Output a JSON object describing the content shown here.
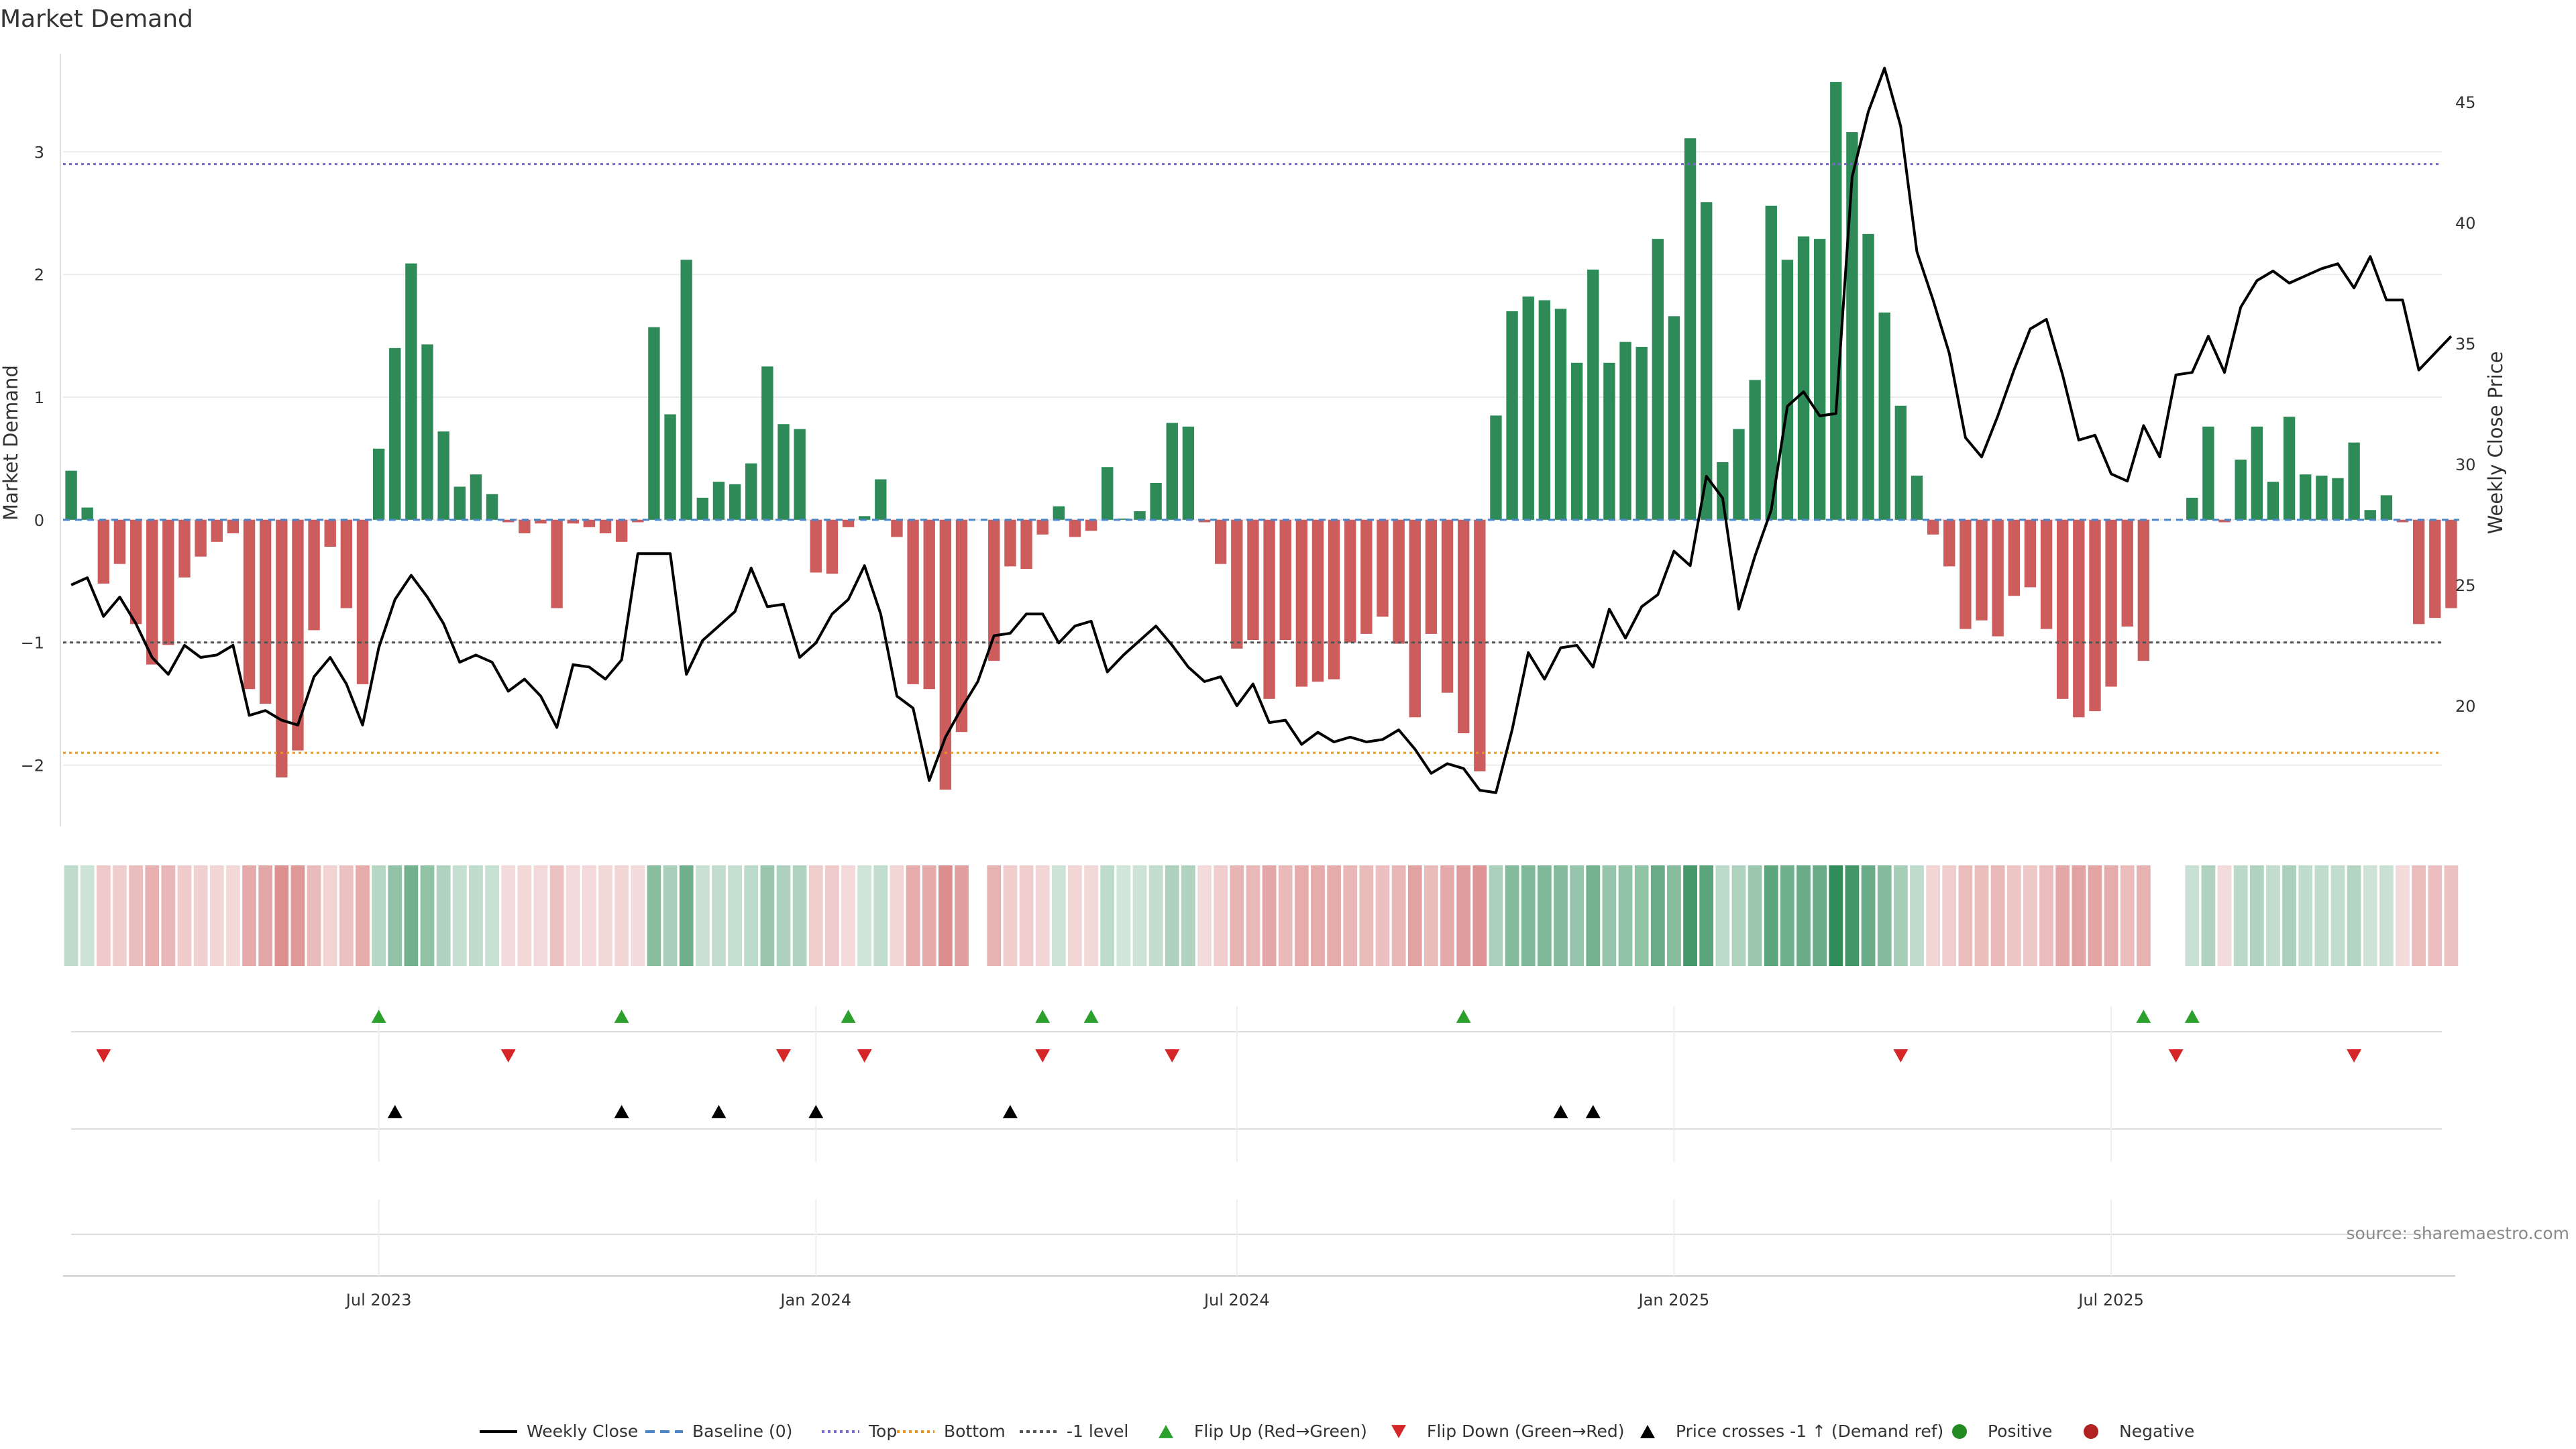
{
  "chart_data": {
    "type": "bar",
    "title": "Market Demand",
    "ylabel": "Market Demand",
    "y2label": "Weekly Close Price",
    "ylim": [
      -2.5,
      3.8
    ],
    "y2lim": [
      15,
      47
    ],
    "yticks": [
      "−2",
      "−1",
      "0",
      "1",
      "2",
      "3"
    ],
    "y2ticks": [
      "20",
      "25",
      "30",
      "35",
      "40",
      "45"
    ],
    "xticks": [
      "Jul 2023",
      "Jan 2024",
      "Jul 2024",
      "Jan 2025",
      "Jul 2025"
    ],
    "source": "source: sharemaestro.com",
    "reference_lines": {
      "baseline": 0,
      "top": 2.9,
      "bottom": -1.9,
      "minus_one": -1
    },
    "colors": {
      "positive": "#2e8b57",
      "negative": "#cd5c5c",
      "close": "#000000",
      "top": "#7b68c8",
      "bottom": "#e69520",
      "minus_one": "#555555",
      "baseline": "#4a86c8",
      "flip_up": "#2ca02c",
      "flip_down": "#d62728"
    },
    "demand": [
      0.4,
      0.1,
      -0.52,
      -0.36,
      -0.85,
      -1.18,
      -1.02,
      -0.47,
      -0.3,
      -0.18,
      -0.11,
      -1.38,
      -1.5,
      -2.1,
      -1.88,
      -0.9,
      -0.22,
      -0.72,
      -1.34,
      0.58,
      1.4,
      2.09,
      1.43,
      0.72,
      0.27,
      0.37,
      0.21,
      -0.02,
      -0.11,
      -0.03,
      -0.72,
      -0.03,
      -0.06,
      -0.11,
      -0.18,
      -0.02,
      1.57,
      0.86,
      2.12,
      0.18,
      0.31,
      0.29,
      0.46,
      1.25,
      0.78,
      0.74,
      -0.43,
      -0.44,
      -0.06,
      0.03,
      0.33,
      -0.14,
      -1.34,
      -1.38,
      -2.2,
      -1.73,
      0,
      -1.15,
      -0.38,
      -0.4,
      -0.12,
      0.11,
      -0.14,
      -0.09,
      0.43,
      0.01,
      0.07,
      0.3,
      0.79,
      0.76,
      -0.02,
      -0.36,
      -1.05,
      -0.98,
      -1.46,
      -0.98,
      -1.36,
      -1.32,
      -1.3,
      -1.0,
      -0.93,
      -0.79,
      -1.01,
      -1.61,
      -0.93,
      -1.41,
      -1.74,
      -2.05,
      0.85,
      1.7,
      1.82,
      1.79,
      1.72,
      1.28,
      2.04,
      1.28,
      1.45,
      1.41,
      2.29,
      1.66,
      3.11,
      2.59,
      0.47,
      0.74,
      1.14,
      2.56,
      2.12,
      2.31,
      2.29,
      3.57,
      3.16,
      2.33,
      1.69,
      0.93,
      0.36,
      -0.12,
      -0.38,
      -0.89,
      -0.82,
      -0.95,
      -0.62,
      -0.55,
      -0.89,
      -1.46,
      -1.61,
      -1.56,
      -1.36,
      -0.87,
      -1.15,
      0,
      0,
      0.18,
      0.76,
      -0.02,
      0.49,
      0.76,
      0.31,
      0.84,
      0.37,
      0.36,
      0.34,
      0.63,
      0.08,
      0.2,
      -0.02,
      -0.85,
      -0.8,
      -0.72
    ],
    "close": [
      25.0,
      25.3,
      23.7,
      24.5,
      23.4,
      22.0,
      21.3,
      22.5,
      22.0,
      22.1,
      22.5,
      19.6,
      19.8,
      19.4,
      19.2,
      21.2,
      22.0,
      20.9,
      19.2,
      22.4,
      24.4,
      25.4,
      24.5,
      23.4,
      21.8,
      22.1,
      21.8,
      20.6,
      21.1,
      20.4,
      19.1,
      21.7,
      21.6,
      21.1,
      21.9,
      26.3,
      26.3,
      26.3,
      21.3,
      22.7,
      23.3,
      23.9,
      25.7,
      24.1,
      24.2,
      22.0,
      22.6,
      23.8,
      24.4,
      25.8,
      23.8,
      20.4,
      19.9,
      16.9,
      18.7,
      19.9,
      21.0,
      22.9,
      23.0,
      23.8,
      23.8,
      22.6,
      23.3,
      23.5,
      21.4,
      22.1,
      22.7,
      23.3,
      22.5,
      21.6,
      21.0,
      21.2,
      20.0,
      20.9,
      19.3,
      19.4,
      18.4,
      18.9,
      18.5,
      18.7,
      18.5,
      18.6,
      19.0,
      18.2,
      17.2,
      17.6,
      17.4,
      16.5,
      16.4,
      19.0,
      22.2,
      21.1,
      22.4,
      22.5,
      21.6,
      24.0,
      22.8,
      24.1,
      24.6,
      26.4,
      25.8,
      29.5,
      28.6,
      24.0,
      26.2,
      28.1,
      32.4,
      33.0,
      32.0,
      32.1,
      41.9,
      44.6,
      46.4,
      44.0,
      38.8,
      36.8,
      34.6,
      31.1,
      30.3,
      32.0,
      33.9,
      35.6,
      36.0,
      33.7,
      31.0,
      31.2,
      29.6,
      29.3,
      31.6,
      30.3,
      33.7,
      33.8,
      35.3,
      33.8,
      36.5,
      37.6,
      38.0,
      37.5,
      37.8,
      38.1,
      38.3,
      37.3,
      38.6,
      36.8,
      36.8,
      33.9,
      34.6,
      35.3
    ],
    "flip_up_idx": [
      19,
      34,
      48,
      60,
      63,
      86,
      128,
      131
    ],
    "flip_down_idx": [
      2,
      27,
      44,
      49,
      60,
      68,
      113,
      130,
      141
    ],
    "cross_idx": [
      20,
      34,
      40,
      46,
      58,
      92,
      94
    ]
  },
  "legend": [
    {
      "label": "Weekly Close",
      "kind": "line"
    },
    {
      "label": "Baseline (0)",
      "kind": "dash"
    },
    {
      "label": "Top",
      "kind": "dot-top"
    },
    {
      "label": "Bottom",
      "kind": "dot-bottom"
    },
    {
      "label": "-1 level",
      "kind": "dot-minus"
    },
    {
      "label": "Flip Up (Red→Green)",
      "kind": "tri-up-green"
    },
    {
      "label": "Flip Down (Green→Red)",
      "kind": "tri-down-red"
    },
    {
      "label": "Price crosses -1 ↑ (Demand ref)",
      "kind": "tri-up-black"
    },
    {
      "label": "Positive",
      "kind": "dot-green"
    },
    {
      "label": "Negative",
      "kind": "dot-red"
    }
  ]
}
